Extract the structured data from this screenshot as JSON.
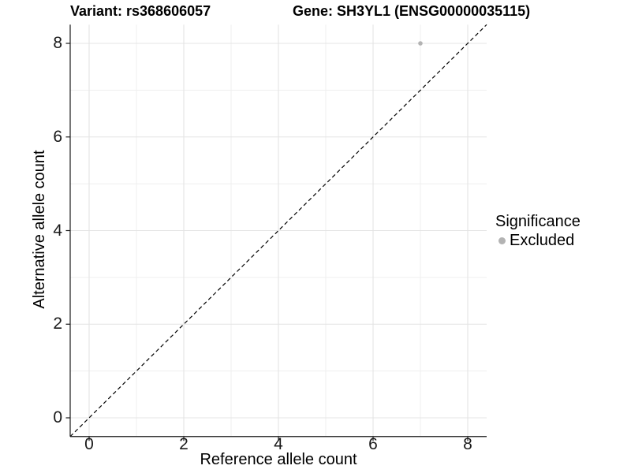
{
  "titles": {
    "variant": "Variant: rs368606057",
    "gene": "Gene: SH3YL1 (ENSG00000035115)"
  },
  "axes": {
    "x": {
      "label": "Reference allele count",
      "tick_labels": [
        "0",
        "2",
        "4",
        "6",
        "8"
      ]
    },
    "y": {
      "label": "Alternative allele count",
      "tick_labels": [
        "0",
        "2",
        "4",
        "6",
        "8"
      ]
    }
  },
  "legend": {
    "title": "Significance",
    "items": [
      {
        "label": "Excluded",
        "color": "#b3b3b3"
      }
    ]
  },
  "chart_data": {
    "type": "scatter",
    "title": "Variant: rs368606057",
    "subtitle": "Gene: SH3YL1 (ENSG00000035115)",
    "xlabel": "Reference allele count",
    "ylabel": "Alternative allele count",
    "xlim": [
      -0.4,
      8.4
    ],
    "ylim": [
      -0.4,
      8.4
    ],
    "x_ticks": [
      0,
      2,
      4,
      6,
      8
    ],
    "y_ticks": [
      0,
      2,
      4,
      6,
      8
    ],
    "x_minor_ticks": [
      1,
      3,
      5,
      7
    ],
    "y_minor_ticks": [
      1,
      3,
      5,
      7
    ],
    "grid": "major+minor",
    "legend_position": "right",
    "series": [
      {
        "name": "Excluded",
        "color": "#b3b3b3",
        "points": [
          {
            "x": 7,
            "y": 8
          }
        ]
      }
    ],
    "reference_line": {
      "type": "identity y=x",
      "style": "dashed",
      "color": "#000000"
    }
  },
  "colors": {
    "background": "#ffffff",
    "grid_major": "#e4e4e4",
    "grid_minor": "#efefef",
    "axis_line": "#1a1a1a",
    "point": "#b3b3b3",
    "dashed_line": "#000000"
  }
}
